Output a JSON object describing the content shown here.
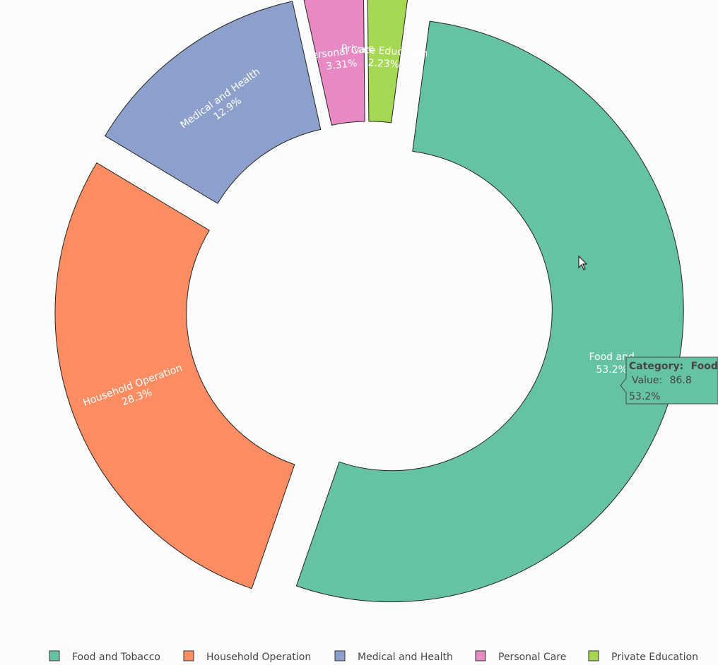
{
  "chart_data": {
    "type": "pie",
    "hole": 0.55,
    "categories": [
      "Food and Tobacco",
      "Household Operation",
      "Medical and Health",
      "Personal Care",
      "Private Education"
    ],
    "values": [
      86.8,
      46.2,
      21.1,
      5.4,
      3.64
    ],
    "percent_labels": [
      "53.2%",
      "28.3%",
      "12.9%",
      "3.31%",
      "2.23%"
    ],
    "pull": [
      0.08,
      0.08,
      0.08,
      0.08,
      0.08
    ],
    "colors": [
      "#66c2a5",
      "#fc8d62",
      "#8da0cb",
      "#e78ac3",
      "#a6d854"
    ],
    "legend_position": "bottom",
    "slice_text": [
      {
        "l1": "Food and",
        "l2": "53.2%"
      },
      {
        "l1": "Household Operation",
        "l2": "28.3%"
      },
      {
        "l1": "Medical and Health",
        "l2": "12.9%"
      },
      {
        "l1": "Personal Care",
        "l2": "3.31%"
      },
      {
        "l1": "Private Education",
        "l2": "2.23%"
      }
    ]
  },
  "legend": {
    "items": [
      "Food and Tobacco",
      "Household Operation",
      "Medical and Health",
      "Personal Care",
      "Private Education"
    ]
  },
  "tooltip": {
    "category_key": "Category:",
    "category_value": "Food",
    "value_key": "Value:",
    "value_value": "86.8",
    "percent": "53.2%"
  }
}
